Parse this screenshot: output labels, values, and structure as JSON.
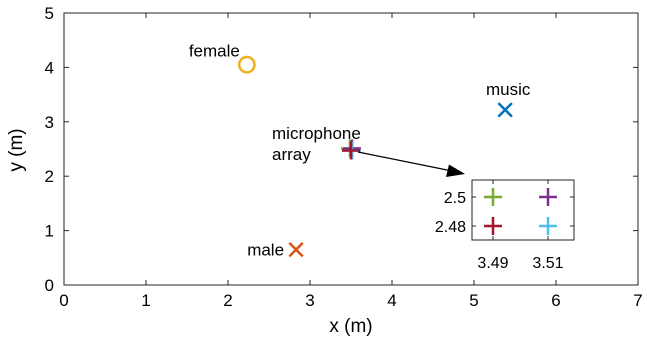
{
  "chart_data": {
    "type": "scatter",
    "xlabel": "x (m)",
    "ylabel": "y (m)",
    "xlim": [
      0,
      7
    ],
    "ylim": [
      0,
      5
    ],
    "xticks": [
      0,
      1,
      2,
      3,
      4,
      5,
      6,
      7
    ],
    "yticks": [
      0,
      1,
      2,
      3,
      4,
      5
    ],
    "grid": false,
    "points": [
      {
        "label": "female",
        "x": 2.23,
        "y": 4.05,
        "marker": "circle",
        "color": "#EDB120"
      },
      {
        "label": "male",
        "x": 2.83,
        "y": 0.65,
        "marker": "x",
        "color": "#D95319"
      },
      {
        "label": "music",
        "x": 5.38,
        "y": 3.22,
        "marker": "x",
        "color": "#0072BD"
      },
      {
        "label": "microphone array",
        "label_lines": [
          "microphone",
          "array"
        ],
        "x": 3.5,
        "y": 2.49,
        "marker": "plus",
        "color": "#A2142F"
      }
    ],
    "inset": {
      "xticks": [
        "3.49",
        "3.51"
      ],
      "yticks": [
        "2.5",
        "2.48"
      ],
      "points": [
        {
          "x": 3.49,
          "y": 2.5,
          "marker": "plus",
          "color": "#77AC30"
        },
        {
          "x": 3.51,
          "y": 2.5,
          "marker": "plus",
          "color": "#7E2F8E"
        },
        {
          "x": 3.49,
          "y": 2.48,
          "marker": "plus",
          "color": "#A2142F"
        },
        {
          "x": 3.51,
          "y": 2.48,
          "marker": "plus",
          "color": "#4DBEEE"
        }
      ]
    }
  }
}
